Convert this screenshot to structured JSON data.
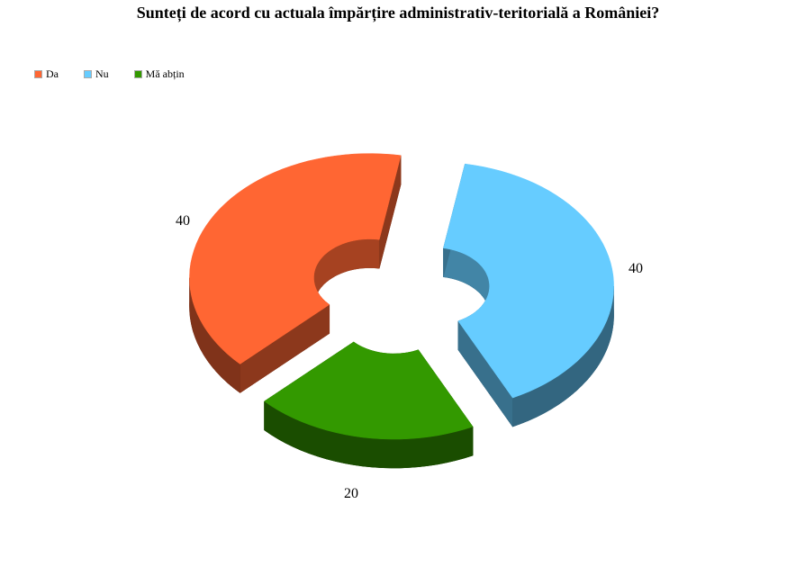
{
  "chart_data": {
    "type": "pie",
    "variant": "3d-exploded-donut",
    "title": "Sunteți de acord cu actuala împărțire administrativ-teritorială a României?",
    "legend_position": "top-left",
    "categories": [
      "Da",
      "Nu",
      "Mă abțin"
    ],
    "values": [
      40,
      40,
      20
    ],
    "data_labels": [
      "40",
      "40",
      "20"
    ],
    "colors": [
      "#ff6633",
      "#66ccff",
      "#339900"
    ]
  }
}
